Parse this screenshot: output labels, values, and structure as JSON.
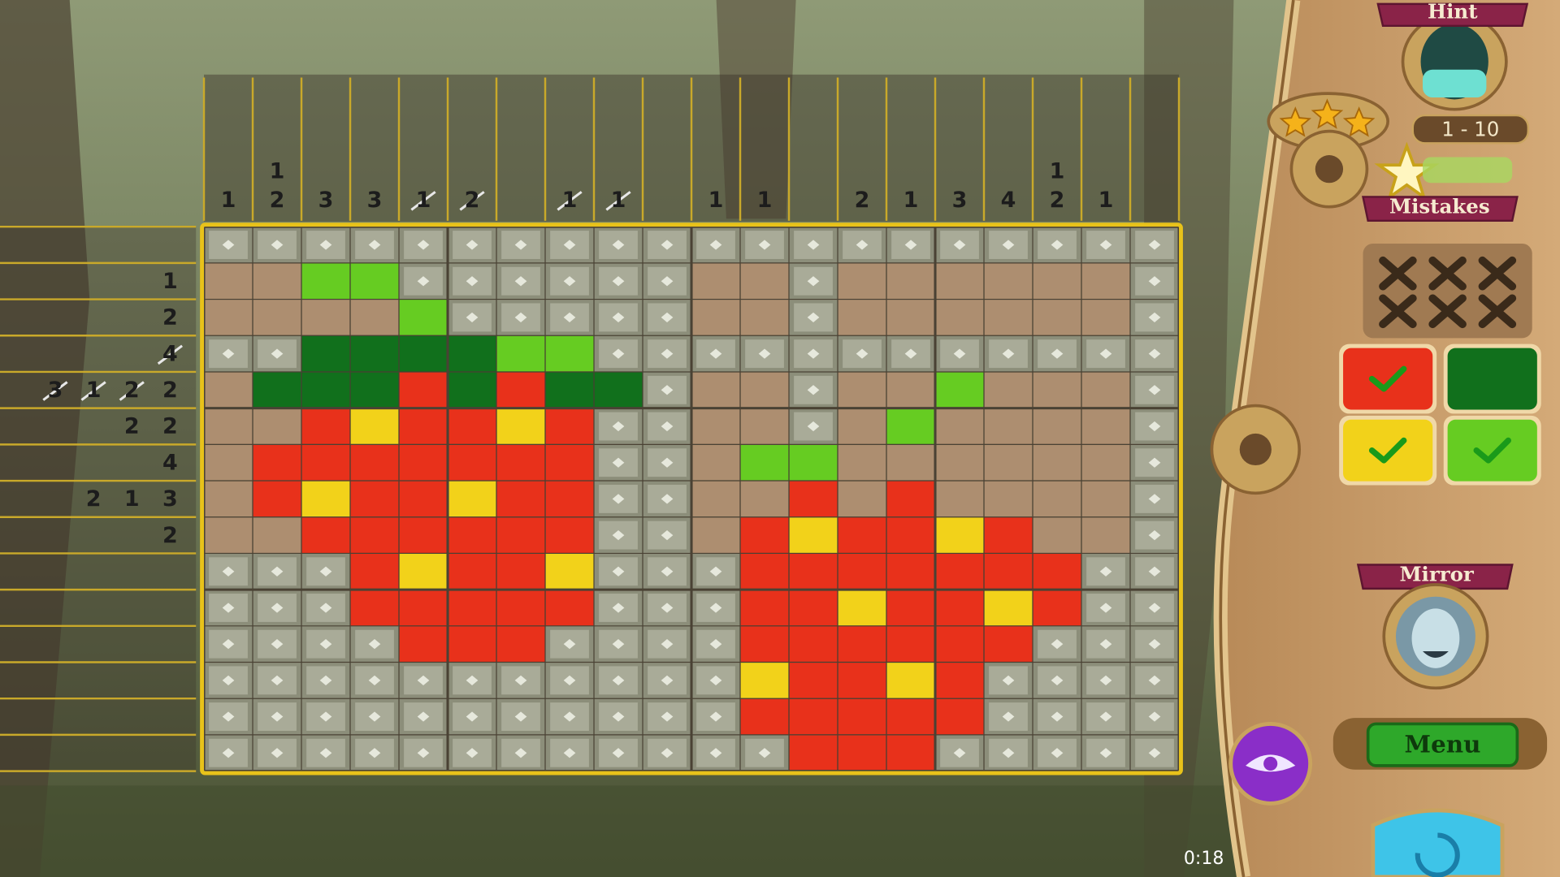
{
  "level": "1 - 10",
  "timer": "0:18",
  "stars": 3,
  "hint": {
    "label": "Hint"
  },
  "mistakes": {
    "label": "Mistakes",
    "remaining": 6
  },
  "palette": [
    {
      "color": "#e8311b",
      "checked": true
    },
    {
      "color": "#11701c",
      "checked": false
    },
    {
      "color": "#f2d21a",
      "checked": true
    },
    {
      "color": "#66cc22",
      "checked": true
    }
  ],
  "mirror": {
    "label": "Mirror"
  },
  "menu": {
    "label": "Menu"
  },
  "puzzle": {
    "column_clues": [
      [
        1
      ],
      [
        1,
        2
      ],
      [
        3
      ],
      [
        3
      ],
      [
        1
      ],
      [
        2
      ],
      [],
      [
        1
      ],
      [
        1
      ],
      [],
      [
        1
      ],
      [
        1
      ],
      [],
      [
        2
      ],
      [
        1
      ],
      [
        3
      ],
      [
        4
      ],
      [
        1,
        2
      ],
      [
        1
      ],
      []
    ],
    "row_clues": [
      [],
      [
        1
      ],
      [
        2
      ],
      [
        4
      ],
      [
        3,
        1,
        2,
        2
      ],
      [
        2,
        2
      ],
      [
        4
      ],
      [
        2,
        1,
        3
      ],
      [
        2
      ],
      [],
      [],
      [],
      [],
      [],
      []
    ],
    "crossed_column_clues": [
      [
        4,
        0
      ],
      [
        5,
        0
      ],
      [
        7,
        0
      ],
      [
        8,
        0
      ]
    ],
    "crossed_row_clues": [
      [
        3,
        0
      ],
      [
        4,
        0
      ],
      [
        4,
        1
      ],
      [
        4,
        2
      ]
    ],
    "cell_colors": {
      "r": "#e8311b",
      "y": "#f2d21a",
      "g": "#66cc22",
      "d": "#11701c",
      "e": "#ad8e70"
    },
    "rows": [
      "xxxxxxxxxxxxxxxxxxxx",
      "eeggxxxxxxeexeeeeeex",
      "eeeegxxxxxeexeeeeeex",
      "xxddddggxxxxxxxxxxxx",
      "edddrdrddxeexeegeeex",
      "eeryrryrxxeexegeeeex",
      "errrrrrrxxeggeeeeeex",
      "eryrryrrxxeerereeeex",
      "eerrrrrrxxeryrryreex",
      "xxxryrryxxxrrrrrrrxx",
      "xxxrrrrrxxxrryrryrxx",
      "xxxxrrrxxxxrrrrrrxxx",
      "xxxxxxxxxxxyrryrxxxx",
      "xxxxxxxxxxxrrrrrxxxx",
      "xxxxxxxxxxxxrrrxxxxx"
    ]
  }
}
